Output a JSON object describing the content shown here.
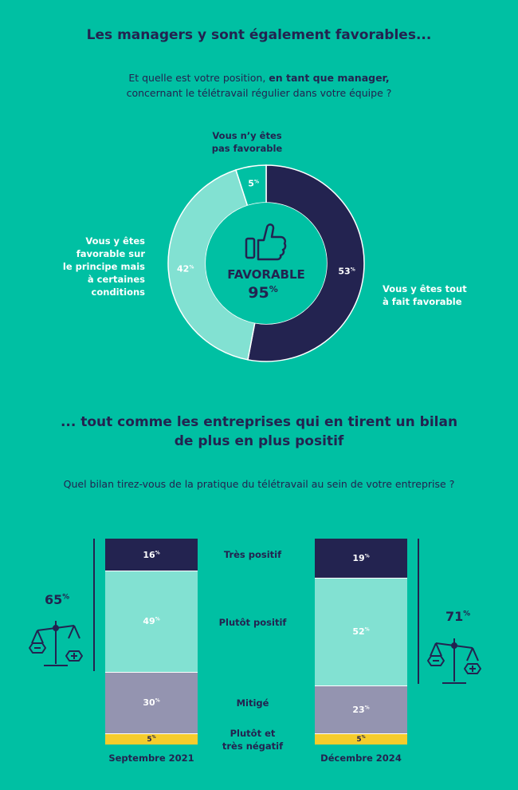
{
  "section1": {
    "title": "Les managers y sont également favorables...",
    "question_line1_a": "Et quelle est votre position, ",
    "question_line1_b": "en tant que manager,",
    "question_line2": "concernant le télétravail régulier dans votre équipe ?",
    "center_label": "FAVORABLE",
    "center_value": "95",
    "label_not_line1": "Vous n’y êtes",
    "label_not_line2": "pas favorable",
    "label_cond": [
      "Vous y êtes",
      "favorable sur",
      "le principe mais",
      "à certaines",
      "conditions"
    ],
    "label_full_line1": "Vous y êtes tout",
    "label_full_line2": "à fait favorable"
  },
  "section2": {
    "title_line1": "... tout comme les entreprises qui en tirent un bilan",
    "title_line2": "de plus en plus positif",
    "question": "Quel bilan tirez-vous de la pratique du télétravail au sein de votre entreprise ?",
    "categories": [
      "Très positif",
      "Plutôt positif",
      "Mitigé"
    ],
    "category_last_line1": "Plutôt et",
    "category_last_line2": "très négatif",
    "left_total": "65",
    "right_total": "71"
  },
  "pct_symbol": "%",
  "colors": {
    "background": "#00c0a3",
    "navy": "#232350",
    "mint": "#82e1d2",
    "grey": "#9494b0",
    "yellow": "#f5cc2c"
  },
  "chart_data": [
    {
      "type": "pie",
      "labels": [
        "Vous y êtes tout à fait favorable",
        "Vous y êtes favorable sur le principe mais à certaines conditions",
        "Vous n’y êtes pas favorable"
      ],
      "values": [
        53,
        42,
        5
      ],
      "value_labels": [
        "53",
        "42",
        "5"
      ],
      "colors": [
        "#232350",
        "#82e1d2",
        "#00c0a3"
      ]
    },
    {
      "type": "bar",
      "stacked": true,
      "categories": [
        "Septembre 2021",
        "Décembre 2024"
      ],
      "series": [
        {
          "name": "Très positif",
          "values": [
            16,
            19
          ],
          "color": "#232350"
        },
        {
          "name": "Plutôt positif",
          "values": [
            49,
            52
          ],
          "color": "#82e1d2"
        },
        {
          "name": "Mitigé",
          "values": [
            30,
            23
          ],
          "color": "#9494b0"
        },
        {
          "name": "Plutôt et très négatif",
          "values": [
            5,
            5
          ],
          "color": "#f5cc2c"
        }
      ]
    }
  ]
}
